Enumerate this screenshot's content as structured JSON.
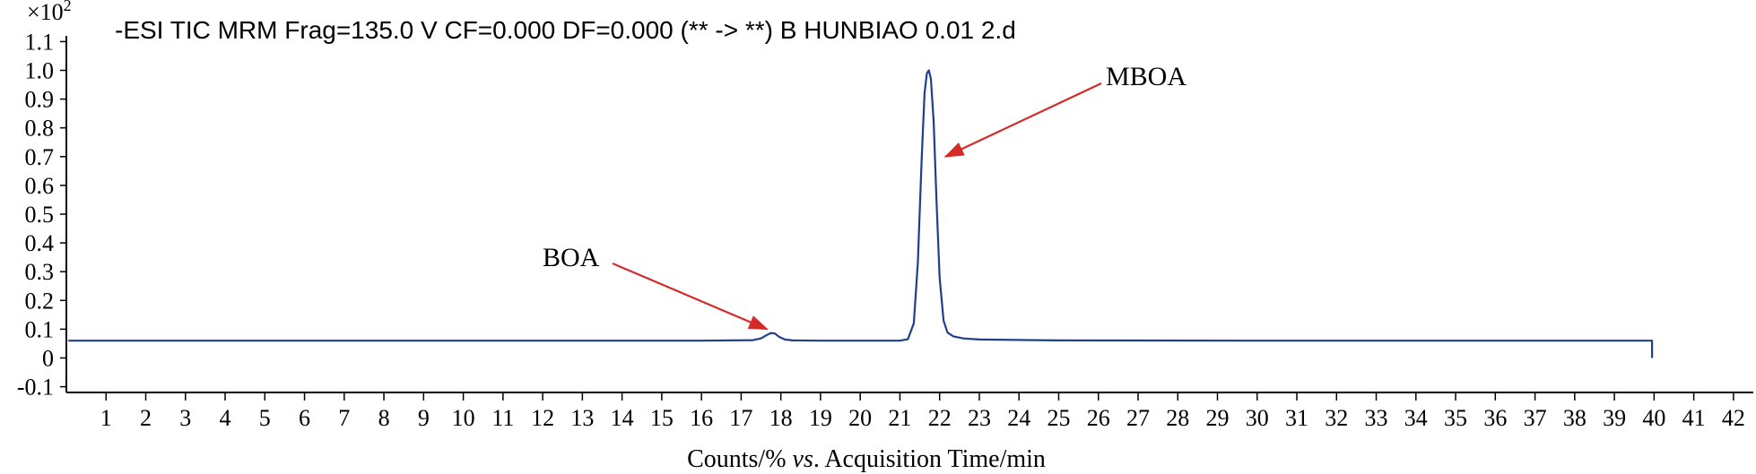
{
  "chart_data": {
    "type": "line",
    "title": "-ESI TIC MRM Frag=135.0 V CF=0.000 DF=0.000 (** -> **) B HUNBIAO  0.01  2.d",
    "y_multiplier": "×10",
    "y_multiplier_exp": "2",
    "xlabel_parts": [
      "Counts/% ",
      "vs",
      ". Acquisition Time/min"
    ],
    "ylabel": "",
    "xlim": [
      0,
      42.5
    ],
    "ylim": [
      -0.12,
      1.12
    ],
    "x_ticks": [
      1,
      2,
      3,
      4,
      5,
      6,
      7,
      8,
      9,
      10,
      11,
      12,
      13,
      14,
      15,
      16,
      17,
      18,
      19,
      20,
      21,
      22,
      23,
      24,
      25,
      26,
      27,
      28,
      29,
      30,
      31,
      32,
      33,
      34,
      35,
      36,
      37,
      38,
      39,
      40,
      41,
      42
    ],
    "y_ticks": [
      {
        "value": -0.1,
        "label": "-0.1"
      },
      {
        "value": 0,
        "label": "0"
      },
      {
        "value": 0.1,
        "label": "0.1"
      },
      {
        "value": 0.2,
        "label": "0.2"
      },
      {
        "value": 0.3,
        "label": "0.3"
      },
      {
        "value": 0.4,
        "label": "0.4"
      },
      {
        "value": 0.5,
        "label": "0.5"
      },
      {
        "value": 0.6,
        "label": "0.6"
      },
      {
        "value": 0.7,
        "label": "0.7"
      },
      {
        "value": 0.8,
        "label": "0.8"
      },
      {
        "value": 0.9,
        "label": "0.9"
      },
      {
        "value": 1.0,
        "label": "1.0"
      },
      {
        "value": 1.1,
        "label": "1.1"
      }
    ],
    "series": [
      {
        "color": "#1f3f8c",
        "x": [
          0.05,
          2,
          4,
          6,
          8,
          10,
          12,
          14,
          16,
          17.3,
          17.5,
          17.65,
          17.75,
          17.85,
          17.95,
          18.1,
          18.3,
          19,
          20,
          21,
          21.2,
          21.35,
          21.45,
          21.55,
          21.62,
          21.68,
          21.73,
          21.78,
          21.85,
          21.92,
          22.0,
          22.1,
          22.2,
          22.35,
          22.6,
          23,
          25,
          30,
          35,
          39.95,
          39.95
        ],
        "y": [
          0.06,
          0.06,
          0.06,
          0.06,
          0.06,
          0.06,
          0.06,
          0.06,
          0.06,
          0.062,
          0.068,
          0.08,
          0.087,
          0.085,
          0.074,
          0.064,
          0.061,
          0.06,
          0.06,
          0.06,
          0.065,
          0.12,
          0.33,
          0.7,
          0.92,
          0.99,
          1.0,
          0.97,
          0.82,
          0.55,
          0.28,
          0.13,
          0.088,
          0.075,
          0.068,
          0.064,
          0.061,
          0.06,
          0.06,
          0.06,
          0.0
        ]
      }
    ],
    "annotations": [
      {
        "text": "BOA",
        "arrow_to": [
          17.65,
          0.1
        ],
        "color": "#d42a2a"
      },
      {
        "text": "MBOA",
        "arrow_to": [
          22.15,
          0.7
        ],
        "color": "#d42a2a"
      }
    ]
  }
}
